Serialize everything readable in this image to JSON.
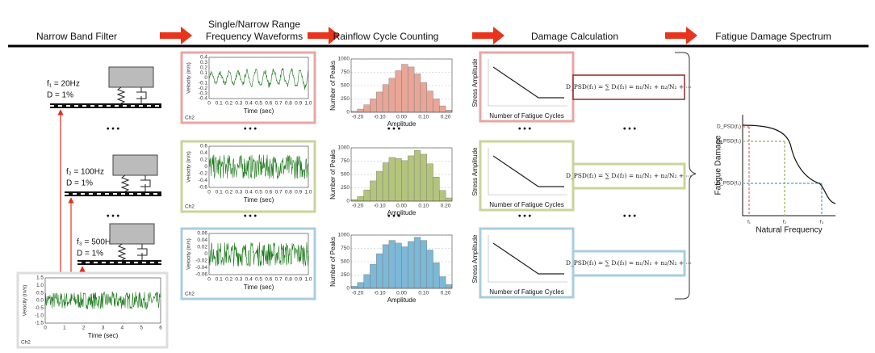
{
  "header": {
    "steps": [
      [
        "Narrow Band Filter"
      ],
      [
        "Single/Narrow Range",
        "Frequency Waveforms"
      ],
      [
        "Rainflow Cycle Counting"
      ],
      [
        "Damage Calculation"
      ],
      [
        "Fatigue Damage Spectrum"
      ]
    ]
  },
  "ellipsis": "• • •",
  "filters": [
    {
      "frequency": "f₁ = 20Hz",
      "damping": "D = 1%"
    },
    {
      "frequency": "f₂ = 100Hz",
      "damping": "D = 1%"
    },
    {
      "frequency": "f₃ = 500Hz",
      "damping": "D = 1%"
    }
  ],
  "input_signal": {
    "y_label": "Velocity (in/s)",
    "x_label": "Time (sec)",
    "channel": "Ch2",
    "yticks": [
      "1.5",
      "1.0",
      "0.5",
      "0.0",
      "-0.5",
      "-1.0",
      "-1.5"
    ],
    "xticks": [
      "0",
      "1",
      "2",
      "3",
      "4",
      "5",
      "6"
    ]
  },
  "waveforms": [
    {
      "y_label": "Velocity (in/s)",
      "x_label": "Time (sec)",
      "channel": "Ch2",
      "yticks": [
        "0.4",
        "0.3",
        "0.2",
        "0.1",
        "0",
        "-0.1",
        "-0.2",
        "-0.3",
        "-0.4"
      ],
      "xticks": [
        "0",
        "0.1",
        "0.2",
        "0.3",
        "0.4",
        "0.5",
        "0.6",
        "0.7",
        "0.8",
        "0.9",
        "1.0"
      ]
    },
    {
      "y_label": "Velocity (in/s)",
      "x_label": "Time (sec)",
      "channel": "Ch2",
      "yticks": [
        "0.6",
        "0.4",
        "0.2",
        "0",
        "-0.2",
        "-0.4",
        "-0.6"
      ],
      "xticks": [
        "0",
        "0.1",
        "0.2",
        "0.3",
        "0.4",
        "0.5",
        "0.6",
        "0.7",
        "0.8",
        "0.9",
        "1.0"
      ]
    },
    {
      "y_label": "Velocity (in/s)",
      "x_label": "Time (sec)",
      "channel": "Ch2",
      "yticks": [
        "0.06",
        "0.04",
        "0.02",
        "0",
        "-0.02",
        "-0.04",
        "-0.06"
      ],
      "xticks": [
        "0",
        "0.1",
        "0.2",
        "0.3",
        "0.4",
        "0.5",
        "0.6",
        "0.7",
        "0.8",
        "0.9",
        "1.0"
      ]
    }
  ],
  "histograms": [
    {
      "y_label": "Number of Peaks",
      "x_label": "Amplitude",
      "ylim": [
        0,
        1000
      ],
      "yticks": [
        0,
        250,
        500,
        750,
        1000
      ],
      "xticks": [
        "-0.20",
        "-0.10",
        "0.00",
        "0.10",
        "0.20"
      ],
      "bars": [
        20,
        60,
        140,
        250,
        380,
        520,
        640,
        780,
        900,
        850,
        720,
        560,
        400,
        250,
        120,
        40
      ]
    },
    {
      "y_label": "Number of Peaks",
      "x_label": "Amplitude",
      "ylim": [
        0,
        1000
      ],
      "yticks": [
        0,
        250,
        500,
        750,
        1000
      ],
      "xticks": [
        "-0.20",
        "-0.10",
        "0.00",
        "0.10",
        "0.20"
      ],
      "bars": [
        30,
        90,
        210,
        380,
        560,
        720,
        820,
        800,
        760,
        850,
        950,
        880,
        700,
        450,
        200,
        60
      ]
    },
    {
      "y_label": "Number of Peaks",
      "x_label": "Amplitude",
      "ylim": [
        0,
        1000
      ],
      "yticks": [
        0,
        250,
        500,
        750,
        1000
      ],
      "xticks": [
        "-0.20",
        "-0.10",
        "0.00",
        "0.10",
        "0.20"
      ],
      "bars": [
        40,
        110,
        260,
        450,
        650,
        820,
        900,
        850,
        780,
        880,
        960,
        900,
        720,
        480,
        220,
        70
      ]
    }
  ],
  "damage": [
    {
      "y_label": "Stress Amplitude",
      "x_label": "Number of Fatigue Cycles",
      "formula": "D_PSD(f₁) = ∑ Dᵢ(f₁) = n₁/N₁ + n₂/N₂ + ⋯"
    },
    {
      "y_label": "Stress Amplitude",
      "x_label": "Number of Fatigue Cycles",
      "formula": "D_PSD(f₂) = ∑ Dᵢ(f₂) = n₁/N₁ + n₂/N₂ + ⋯"
    },
    {
      "y_label": "Stress Amplitude",
      "x_label": "Number of Fatigue Cycles",
      "formula": "D_PSD(f₃) = ∑ Dᵢ(f₃) = n₁/N₁ + n₂/N₂ + ⋯"
    }
  ],
  "spectrum": {
    "y_label": "Fatigue Damage",
    "x_label": "Natural Frequency",
    "damage_labels": [
      "D_PSD(f₁)",
      "D_PSD(f₂)",
      "D_PSD(f₃)"
    ],
    "frequency_labels": [
      "f₁",
      "f₂",
      "f₃"
    ]
  }
}
